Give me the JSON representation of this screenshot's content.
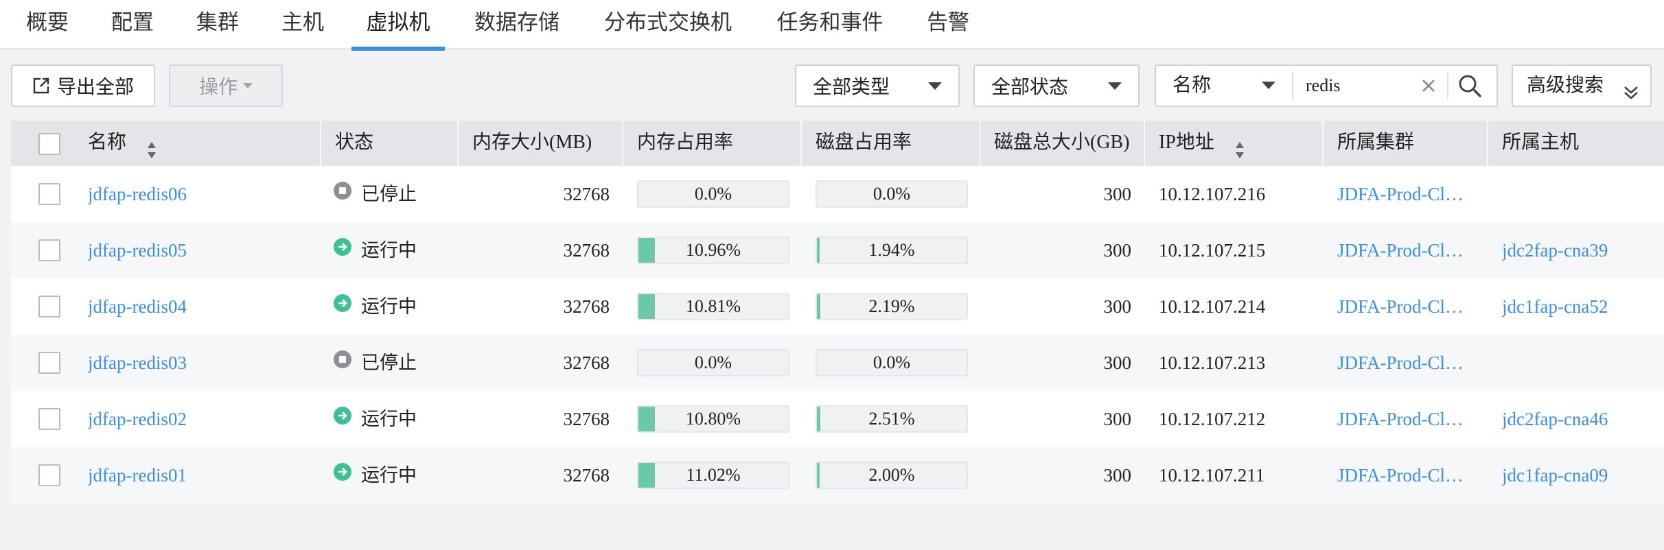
{
  "tabs": [
    {
      "label": "概要",
      "active": false
    },
    {
      "label": "配置",
      "active": false
    },
    {
      "label": "集群",
      "active": false
    },
    {
      "label": "主机",
      "active": false
    },
    {
      "label": "虚拟机",
      "active": true
    },
    {
      "label": "数据存储",
      "active": false
    },
    {
      "label": "分布式交换机",
      "active": false
    },
    {
      "label": "任务和事件",
      "active": false
    },
    {
      "label": "告警",
      "active": false
    }
  ],
  "toolbar": {
    "export_label": "导出全部",
    "export_icon": "export-icon",
    "actions_label": "操作",
    "type_filter": "全部类型",
    "status_filter": "全部状态",
    "search_field": "名称",
    "search_value": "redis",
    "advanced_search": "高级搜索"
  },
  "table": {
    "headers": {
      "name": "名称",
      "status": "状态",
      "memory": "内存大小(MB)",
      "mem_usage": "内存占用率",
      "disk_usage": "磁盘占用率",
      "disk_total": "磁盘总大小(GB)",
      "ip": "IP地址",
      "cluster": "所属集群",
      "host": "所属主机"
    },
    "rows": [
      {
        "name": "jdfap-redis06",
        "status": "已停止",
        "status_type": "stopped",
        "memory": "32768",
        "mem_usage": "0.0%",
        "mem_pct": 0,
        "disk_usage": "0.0%",
        "disk_pct": 0,
        "disk_total": "300",
        "ip": "10.12.107.216",
        "cluster": "JDFA-Prod-Cl…",
        "host": ""
      },
      {
        "name": "jdfap-redis05",
        "status": "运行中",
        "status_type": "running",
        "memory": "32768",
        "mem_usage": "10.96%",
        "mem_pct": 10.96,
        "disk_usage": "1.94%",
        "disk_pct": 1.94,
        "disk_total": "300",
        "ip": "10.12.107.215",
        "cluster": "JDFA-Prod-Cl…",
        "host": "jdc2fap-cna39"
      },
      {
        "name": "jdfap-redis04",
        "status": "运行中",
        "status_type": "running",
        "memory": "32768",
        "mem_usage": "10.81%",
        "mem_pct": 10.81,
        "disk_usage": "2.19%",
        "disk_pct": 2.19,
        "disk_total": "300",
        "ip": "10.12.107.214",
        "cluster": "JDFA-Prod-Cl…",
        "host": "jdc1fap-cna52"
      },
      {
        "name": "jdfap-redis03",
        "status": "已停止",
        "status_type": "stopped",
        "memory": "32768",
        "mem_usage": "0.0%",
        "mem_pct": 0,
        "disk_usage": "0.0%",
        "disk_pct": 0,
        "disk_total": "300",
        "ip": "10.12.107.213",
        "cluster": "JDFA-Prod-Cl…",
        "host": ""
      },
      {
        "name": "jdfap-redis02",
        "status": "运行中",
        "status_type": "running",
        "memory": "32768",
        "mem_usage": "10.80%",
        "mem_pct": 10.8,
        "disk_usage": "2.51%",
        "disk_pct": 2.51,
        "disk_total": "300",
        "ip": "10.12.107.212",
        "cluster": "JDFA-Prod-Cl…",
        "host": "jdc2fap-cna46"
      },
      {
        "name": "jdfap-redis01",
        "status": "运行中",
        "status_type": "running",
        "memory": "32768",
        "mem_usage": "11.02%",
        "mem_pct": 11.02,
        "disk_usage": "2.00%",
        "disk_pct": 2.0,
        "disk_total": "300",
        "ip": "10.12.107.211",
        "cluster": "JDFA-Prod-Cl…",
        "host": "jdc1fap-cna09"
      }
    ]
  },
  "colors": {
    "accent": "#3a8ee6",
    "running": "#3fbf95",
    "stopped": "#8c8f94",
    "usage_fill": "#6cc9a5"
  }
}
